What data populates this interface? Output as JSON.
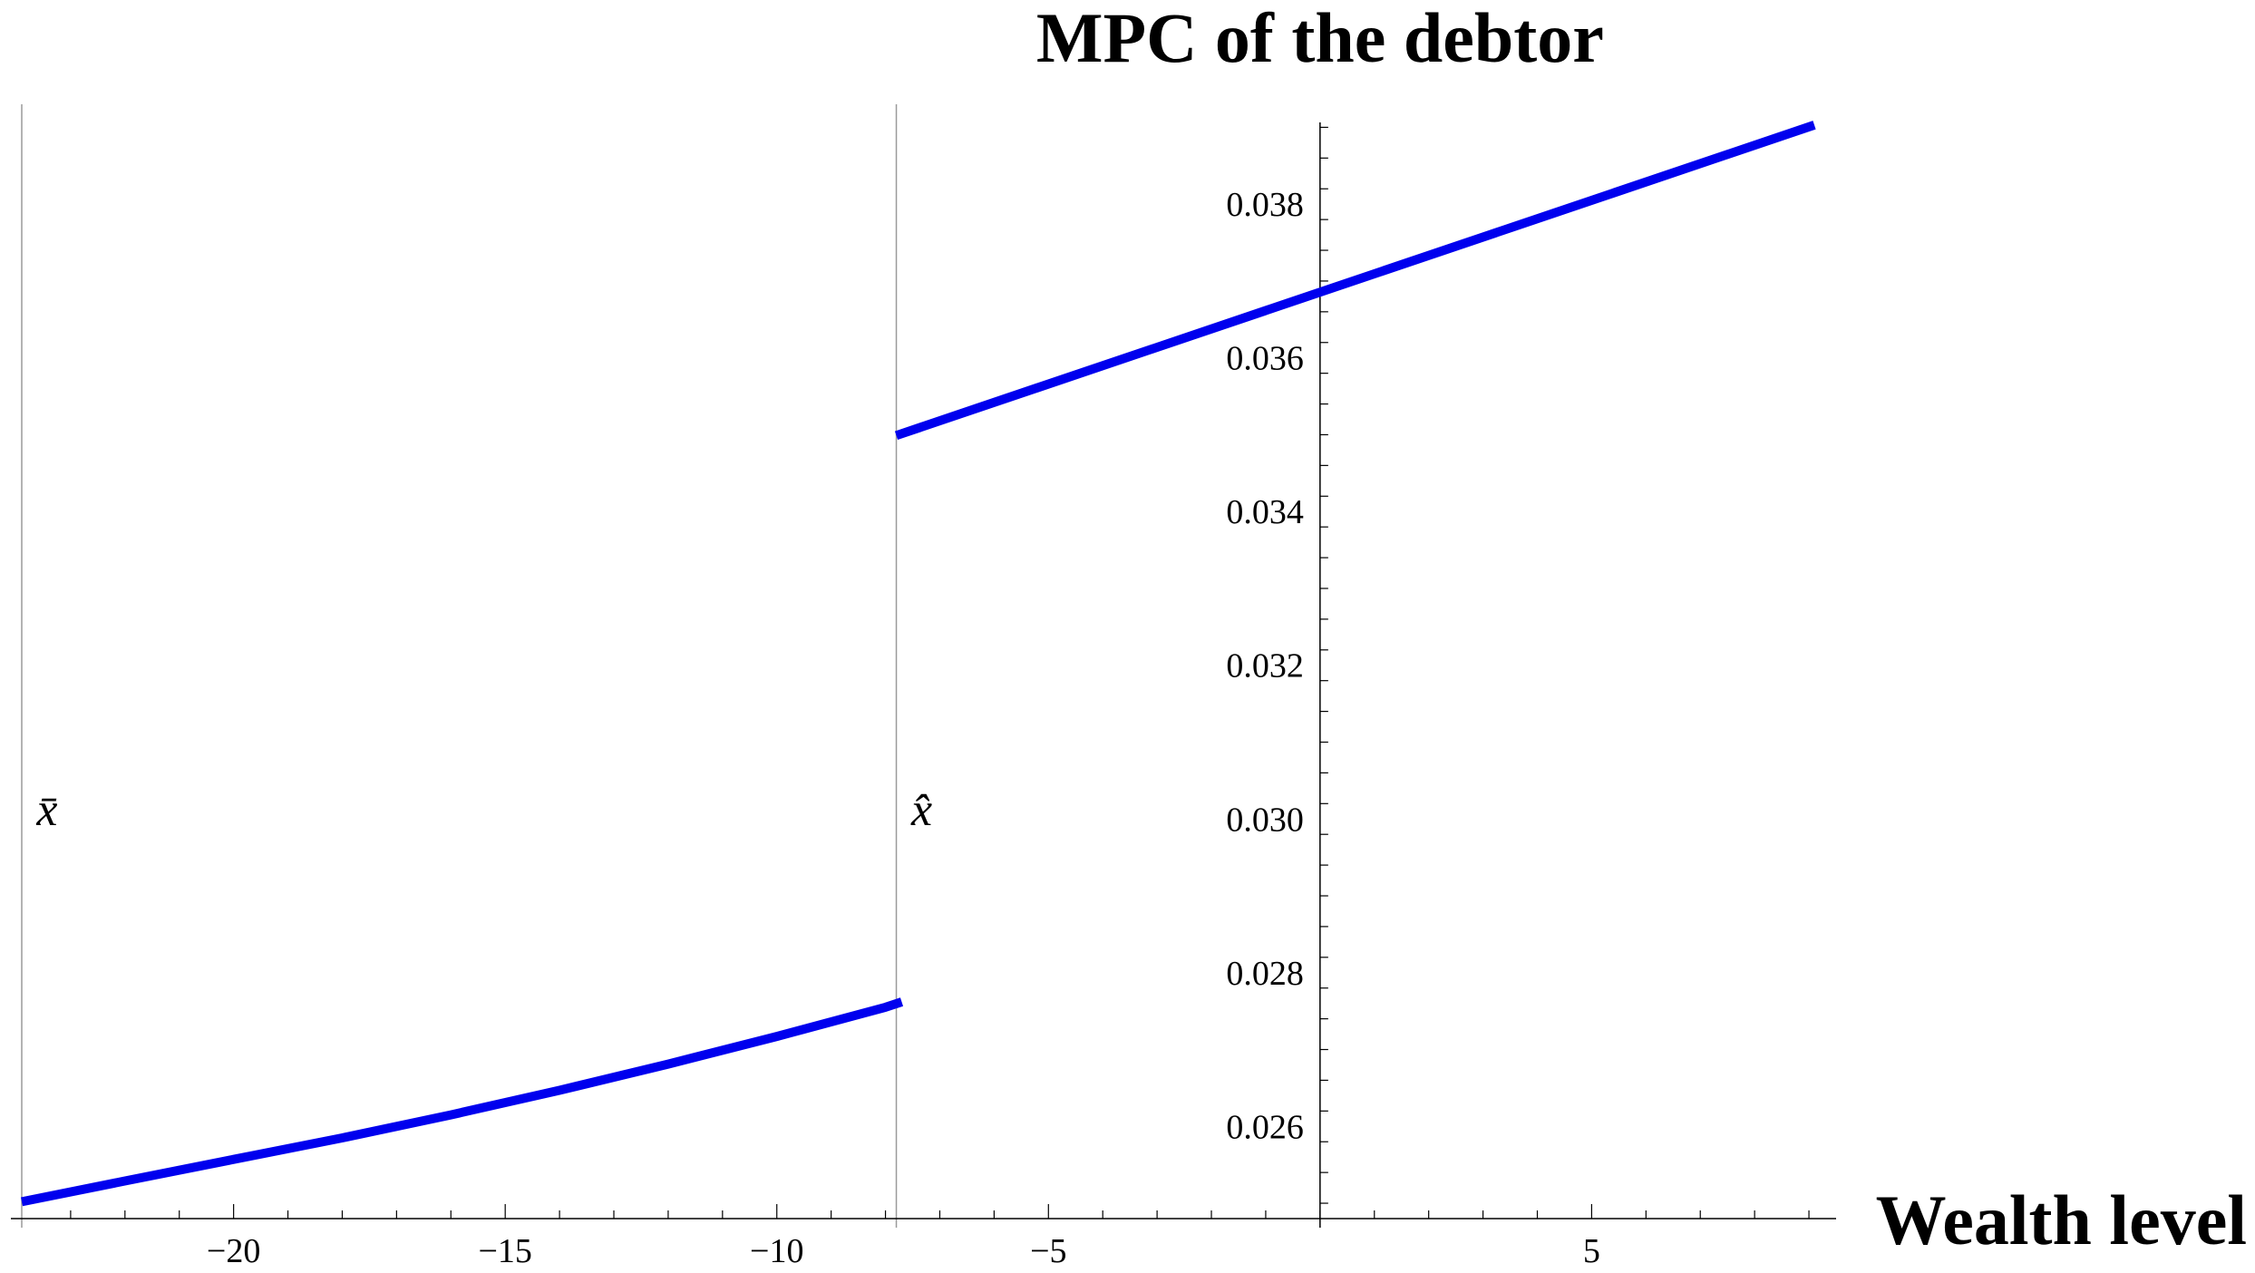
{
  "chart_data": {
    "type": "line",
    "title": "",
    "xlabel": "Wealth level",
    "ylabel": "MPC of the debtor",
    "xlim": [
      -24.1,
      9.5
    ],
    "ylim": [
      0.0248,
      0.0393
    ],
    "x_ticks": [
      -20,
      -15,
      -10,
      -5,
      5
    ],
    "x_tick_labels": [
      "−20",
      "−15",
      "−10",
      "−5",
      "5"
    ],
    "y_ticks": [
      0.026,
      0.028,
      0.03,
      0.032,
      0.034,
      0.036,
      0.038
    ],
    "y_tick_labels": [
      "0.026",
      "0.028",
      "0.030",
      "0.032",
      "0.034",
      "0.036",
      "0.038"
    ],
    "grid": false,
    "series": [
      {
        "color": "#0000ee",
        "points": [
          [
            -23.9,
            0.02502
          ],
          [
            -22.0,
            0.02529
          ],
          [
            -20.0,
            0.02557
          ],
          [
            -18.0,
            0.02585
          ],
          [
            -16.0,
            0.02615
          ],
          [
            -14.0,
            0.02647
          ],
          [
            -12.0,
            0.02681
          ],
          [
            -10.0,
            0.02717
          ],
          [
            -8.0,
            0.02755
          ],
          [
            -7.7,
            0.02762
          ]
        ]
      },
      {
        "color": "#0000ee",
        "points": [
          [
            -7.8,
            0.03499
          ],
          [
            9.1,
            0.03903
          ]
        ]
      }
    ],
    "vertical_lines": [
      {
        "x": -23.9,
        "label": "x̄"
      },
      {
        "x": -7.8,
        "label": "x̂"
      }
    ]
  }
}
